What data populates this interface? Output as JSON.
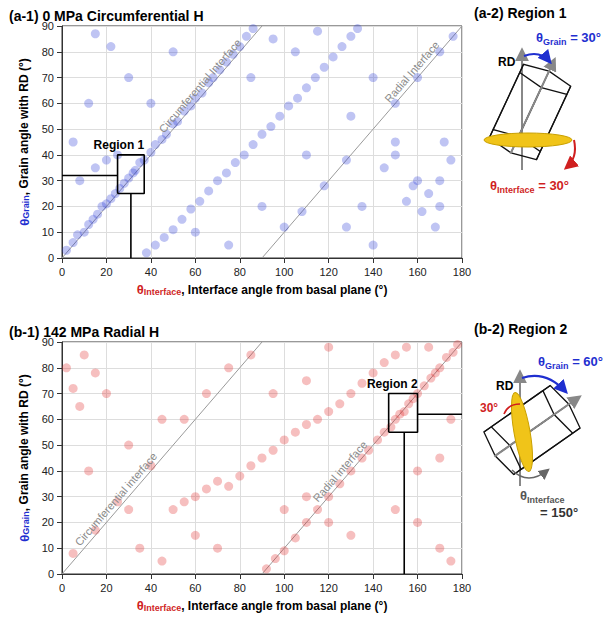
{
  "chart_data": [
    {
      "type": "scatter",
      "title": "(a-1) 0 MPa Circumferential H",
      "xlabel": "θInterface, Interface angle from basal plane (°)",
      "ylabel": "θGrain, Grain angle with RD (°)",
      "xlim": [
        0,
        180
      ],
      "xticks": [
        0,
        20,
        40,
        60,
        80,
        100,
        120,
        140,
        160,
        180
      ],
      "ylim": [
        0,
        90
      ],
      "yticks": [
        0,
        10,
        20,
        30,
        40,
        50,
        60,
        70,
        80,
        90
      ],
      "grid": true,
      "color": "#2b3cd8",
      "marker": "circle",
      "x": [
        2,
        5,
        7,
        10,
        12,
        14,
        16,
        18,
        20,
        22,
        24,
        26,
        28,
        30,
        32,
        33,
        35,
        37,
        40,
        42,
        45,
        47,
        50,
        52,
        55,
        58,
        60,
        63,
        66,
        68,
        71,
        74,
        77,
        80,
        83,
        86,
        38,
        42,
        46,
        50,
        54,
        58,
        62,
        66,
        70,
        74,
        78,
        82,
        86,
        90,
        94,
        98,
        102,
        106,
        110,
        114,
        118,
        122,
        126,
        130,
        133,
        100,
        108,
        118,
        128,
        150,
        160,
        170,
        176,
        15,
        22,
        30,
        12,
        5,
        8,
        60,
        75,
        90,
        95,
        105,
        115,
        140,
        150,
        160,
        165,
        170,
        155,
        145,
        150,
        175,
        170,
        158,
        162,
        168,
        140,
        128,
        135,
        172,
        110,
        85,
        50,
        40,
        130,
        20,
        25,
        15
      ],
      "values": [
        3,
        6,
        9,
        10,
        13,
        15,
        17,
        20,
        21,
        23,
        25,
        27,
        29,
        31,
        33,
        34,
        37,
        38,
        41,
        44,
        46,
        48,
        52,
        53,
        57,
        59,
        62,
        64,
        68,
        70,
        73,
        76,
        79,
        82,
        86,
        89,
        2,
        5,
        8,
        11,
        15,
        19,
        22,
        26,
        30,
        33,
        37,
        40,
        44,
        48,
        51,
        55,
        59,
        62,
        66,
        70,
        74,
        78,
        82,
        86,
        89,
        12,
        18,
        28,
        38,
        60,
        70,
        80,
        86,
        87,
        82,
        70,
        60,
        45,
        30,
        10,
        5,
        20,
        85,
        80,
        88,
        70,
        45,
        30,
        25,
        20,
        22,
        35,
        40,
        38,
        30,
        28,
        18,
        12,
        5,
        12,
        20,
        45,
        40,
        70,
        80,
        60,
        55,
        38,
        40,
        35
      ],
      "reference_lines": [
        {
          "label": "Circumferential Interface",
          "x": [
            0,
            90
          ],
          "y": [
            0,
            90
          ]
        },
        {
          "label": "Radial Interface",
          "x": [
            90,
            180
          ],
          "y": [
            0,
            90
          ]
        }
      ],
      "region": {
        "label": "Region 1",
        "x": [
          25,
          37
        ],
        "y": [
          25,
          40
        ],
        "leaders": [
          {
            "x": [
              0,
              25
            ],
            "y": [
              32,
              32
            ]
          },
          {
            "x": [
              31,
              31
            ],
            "y": [
              0,
              25
            ]
          }
        ]
      }
    },
    {
      "type": "scatter",
      "title": "(b-1) 142 MPa Radial H",
      "xlabel": "θInterface, Interface angle from basal plane (°)",
      "ylabel": "θGrain, Grain angle with RD (°)",
      "xlim": [
        0,
        180
      ],
      "xticks": [
        0,
        20,
        40,
        60,
        80,
        100,
        120,
        140,
        160,
        180
      ],
      "ylim": [
        0,
        90
      ],
      "yticks": [
        0,
        10,
        20,
        30,
        40,
        50,
        60,
        70,
        80,
        90
      ],
      "grid": true,
      "color": "#e02a2a",
      "marker": "circle",
      "x": [
        92,
        96,
        100,
        105,
        110,
        115,
        120,
        125,
        130,
        135,
        138,
        142,
        145,
        148,
        150,
        152,
        154,
        156,
        158,
        160,
        163,
        166,
        168,
        170,
        173,
        176,
        178,
        50,
        55,
        60,
        65,
        70,
        75,
        80,
        85,
        90,
        95,
        100,
        105,
        110,
        115,
        120,
        125,
        130,
        135,
        140,
        145,
        150,
        155,
        5,
        15,
        25,
        40,
        55,
        65,
        75,
        2,
        5,
        8,
        10,
        15,
        20,
        12,
        30,
        35,
        45,
        60,
        70,
        100,
        110,
        120,
        130,
        150,
        160,
        170,
        175,
        160,
        170,
        110,
        95,
        85,
        120,
        175,
        165,
        30,
        45
      ],
      "values": [
        2,
        6,
        9,
        14,
        20,
        25,
        30,
        35,
        40,
        45,
        48,
        52,
        55,
        57,
        60,
        62,
        63,
        66,
        68,
        70,
        73,
        76,
        78,
        80,
        84,
        86,
        89,
        25,
        28,
        30,
        33,
        36,
        34,
        38,
        42,
        45,
        48,
        52,
        55,
        58,
        60,
        63,
        66,
        70,
        74,
        78,
        82,
        85,
        88,
        8,
        17,
        28,
        42,
        60,
        70,
        80,
        80,
        72,
        65,
        85,
        78,
        70,
        40,
        25,
        10,
        5,
        15,
        10,
        25,
        30,
        20,
        15,
        25,
        20,
        10,
        5,
        40,
        45,
        75,
        70,
        85,
        88,
        60,
        88,
        50,
        60
      ],
      "reference_lines": [
        {
          "label": "Circumferential interface",
          "x": [
            0,
            90
          ],
          "y": [
            0,
            90
          ]
        },
        {
          "label": "Radial interface",
          "x": [
            90,
            180
          ],
          "y": [
            0,
            90
          ]
        }
      ],
      "region": {
        "label": "Region 2",
        "x": [
          147,
          160
        ],
        "y": [
          55,
          70
        ],
        "leaders": [
          {
            "x": [
              154,
              154
            ],
            "y": [
              0,
              55
            ]
          },
          {
            "x": [
              160,
              180
            ],
            "y": [
              62,
              62
            ]
          }
        ]
      }
    }
  ],
  "diagrams": [
    {
      "title": "(a-2) Region 1",
      "axis_label": "RD",
      "grain_label": "θGrain = 30°",
      "interface_label": "θInterface = 30°"
    },
    {
      "title": "(b-2) Region 2",
      "axis_label": "RD",
      "grain_label": "θGrain = 60°",
      "angle_label": "30°",
      "interface_label": "θInterface = 150°"
    }
  ]
}
